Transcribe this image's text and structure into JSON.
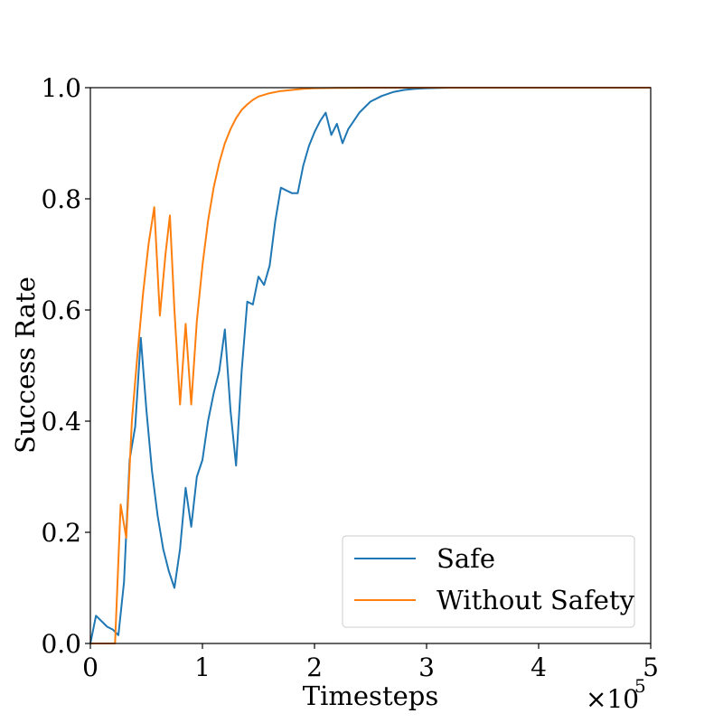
{
  "chart_data": {
    "type": "line",
    "xlabel": "Timesteps",
    "ylabel": "Success Rate",
    "x_multiplier_label": "×10",
    "x_multiplier_exp": "5",
    "xlim": [
      0,
      500000
    ],
    "ylim": [
      0,
      1.0
    ],
    "x_tick_labels": [
      "0",
      "1",
      "2",
      "3",
      "4",
      "5"
    ],
    "x_tick_values": [
      0,
      100000,
      200000,
      300000,
      400000,
      500000
    ],
    "y_tick_labels": [
      "0.0",
      "0.2",
      "0.4",
      "0.6",
      "0.8",
      "1.0"
    ],
    "y_tick_values": [
      0,
      0.2,
      0.4,
      0.6,
      0.8,
      1.0
    ],
    "grid": false,
    "legend_position": "lower-right",
    "series": [
      {
        "name": "Safe",
        "color": "#1f77b4",
        "x": [
          0,
          5000,
          10000,
          15000,
          20000,
          25000,
          30000,
          35000,
          40000,
          45000,
          50000,
          55000,
          60000,
          65000,
          70000,
          75000,
          80000,
          85000,
          90000,
          95000,
          100000,
          105000,
          110000,
          115000,
          120000,
          125000,
          130000,
          135000,
          140000,
          145000,
          150000,
          155000,
          160000,
          165000,
          170000,
          175000,
          180000,
          185000,
          190000,
          195000,
          200000,
          205000,
          210000,
          215000,
          220000,
          225000,
          230000,
          235000,
          240000,
          245000,
          250000,
          260000,
          270000,
          280000,
          290000,
          300000,
          320000,
          350000,
          400000,
          450000,
          500000
        ],
        "y": [
          0.0,
          0.05,
          0.04,
          0.03,
          0.025,
          0.015,
          0.11,
          0.33,
          0.39,
          0.55,
          0.42,
          0.31,
          0.23,
          0.17,
          0.13,
          0.1,
          0.17,
          0.28,
          0.21,
          0.3,
          0.33,
          0.4,
          0.45,
          0.49,
          0.565,
          0.42,
          0.32,
          0.49,
          0.615,
          0.61,
          0.66,
          0.645,
          0.68,
          0.76,
          0.82,
          0.815,
          0.81,
          0.81,
          0.86,
          0.895,
          0.92,
          0.94,
          0.955,
          0.915,
          0.935,
          0.9,
          0.925,
          0.94,
          0.955,
          0.965,
          0.975,
          0.985,
          0.992,
          0.996,
          0.998,
          0.999,
          1.0,
          1.0,
          1.0,
          1.0,
          1.0
        ]
      },
      {
        "name": "Without Safety",
        "color": "#ff7f0e",
        "x": [
          0,
          10000,
          20000,
          22000,
          27000,
          32000,
          37000,
          42000,
          47000,
          52000,
          57000,
          62000,
          67000,
          71000,
          75000,
          80000,
          85000,
          90000,
          95000,
          100000,
          105000,
          110000,
          115000,
          120000,
          125000,
          130000,
          135000,
          140000,
          145000,
          150000,
          160000,
          170000,
          180000,
          190000,
          200000,
          220000,
          250000,
          300000,
          350000,
          400000,
          450000,
          500000
        ],
        "y": [
          0.0,
          0.0,
          0.0,
          0.0,
          0.25,
          0.19,
          0.4,
          0.52,
          0.63,
          0.72,
          0.785,
          0.59,
          0.7,
          0.77,
          0.6,
          0.43,
          0.575,
          0.43,
          0.58,
          0.68,
          0.76,
          0.82,
          0.865,
          0.9,
          0.925,
          0.945,
          0.96,
          0.97,
          0.978,
          0.984,
          0.99,
          0.994,
          0.996,
          0.998,
          0.999,
          0.9995,
          1.0,
          1.0,
          1.0,
          1.0,
          1.0,
          1.0
        ]
      }
    ]
  }
}
